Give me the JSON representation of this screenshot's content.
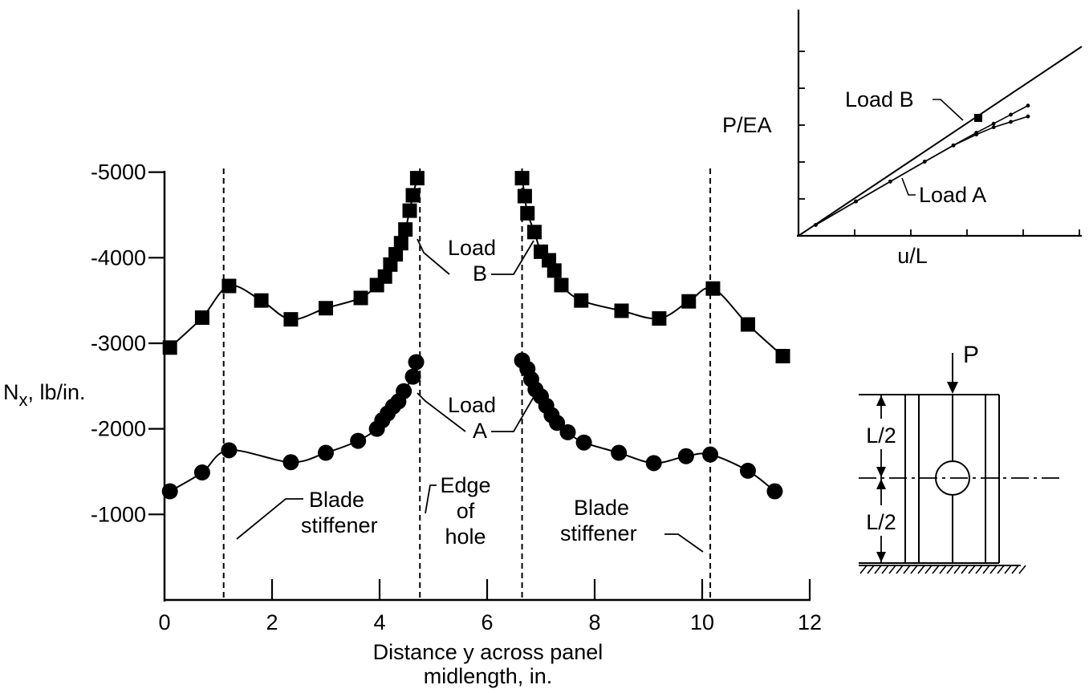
{
  "chart_data": [
    {
      "type": "scatter",
      "xlabel": "Distance y across panel midlength, in.",
      "xlabel_lines": [
        "Distance y across panel",
        "midlength, in."
      ],
      "ylabel_main": "N",
      "ylabel_sub": "x",
      "ylabel_rest": ", lb/in.",
      "x_ticks": [
        "0",
        "2",
        "4",
        "6",
        "8",
        "10",
        "12"
      ],
      "x_tick_values": [
        0,
        2,
        4,
        6,
        8,
        10,
        12
      ],
      "y_ticks": [
        "-1000",
        "-2000",
        "-3000",
        "-4000",
        "-5000"
      ],
      "y_tick_values": [
        -1000,
        -2000,
        -3000,
        -4000,
        -5000
      ],
      "xlim": [
        0,
        12
      ],
      "ylim": [
        0,
        -5000
      ],
      "grid": false,
      "series": [
        {
          "name": "Load B",
          "label_lines": [
            "Load",
            "B"
          ],
          "marker": "square",
          "segments": [
            [
              [
                0.1,
                -2950
              ],
              [
                0.7,
                -3300
              ],
              [
                1.2,
                -3670
              ],
              [
                1.8,
                -3500
              ],
              [
                2.35,
                -3280
              ],
              [
                3.0,
                -3410
              ],
              [
                3.65,
                -3530
              ],
              [
                3.95,
                -3680
              ],
              [
                4.1,
                -3780
              ],
              [
                4.2,
                -3920
              ],
              [
                4.3,
                -4040
              ],
              [
                4.4,
                -4170
              ],
              [
                4.48,
                -4330
              ],
              [
                4.56,
                -4550
              ],
              [
                4.62,
                -4730
              ],
              [
                4.7,
                -4930
              ]
            ],
            [
              [
                6.65,
                -4930
              ],
              [
                6.7,
                -4720
              ],
              [
                6.75,
                -4520
              ],
              [
                6.88,
                -4300
              ],
              [
                7.0,
                -4070
              ],
              [
                7.15,
                -3970
              ],
              [
                7.25,
                -3850
              ],
              [
                7.38,
                -3680
              ],
              [
                7.75,
                -3500
              ],
              [
                8.5,
                -3380
              ],
              [
                9.2,
                -3290
              ],
              [
                9.75,
                -3490
              ],
              [
                10.2,
                -3640
              ],
              [
                10.85,
                -3220
              ],
              [
                11.5,
                -2850
              ]
            ]
          ]
        },
        {
          "name": "Load A",
          "label_lines": [
            "Load",
            "A"
          ],
          "marker": "circle",
          "segments": [
            [
              [
                0.1,
                -1270
              ],
              [
                0.7,
                -1490
              ],
              [
                1.2,
                -1750
              ],
              [
                2.35,
                -1610
              ],
              [
                3.0,
                -1720
              ],
              [
                3.6,
                -1860
              ],
              [
                3.95,
                -2000
              ],
              [
                4.05,
                -2100
              ],
              [
                4.15,
                -2180
              ],
              [
                4.25,
                -2260
              ],
              [
                4.35,
                -2320
              ],
              [
                4.45,
                -2440
              ],
              [
                4.62,
                -2610
              ],
              [
                4.68,
                -2780
              ]
            ],
            [
              [
                6.65,
                -2800
              ],
              [
                6.75,
                -2700
              ],
              [
                6.82,
                -2580
              ],
              [
                6.9,
                -2460
              ],
              [
                7.0,
                -2380
              ],
              [
                7.1,
                -2270
              ],
              [
                7.2,
                -2160
              ],
              [
                7.3,
                -2070
              ],
              [
                7.5,
                -1960
              ],
              [
                7.8,
                -1840
              ],
              [
                8.45,
                -1720
              ],
              [
                9.1,
                -1600
              ],
              [
                9.7,
                -1680
              ],
              [
                10.15,
                -1700
              ],
              [
                10.85,
                -1510
              ],
              [
                11.35,
                -1270
              ]
            ]
          ]
        }
      ],
      "reference_lines": [
        {
          "name": "Blade stiffener (left)",
          "x": 1.1
        },
        {
          "name": "Edge of hole (left)",
          "x": 4.75
        },
        {
          "name": "Edge of hole (right)",
          "x": 6.65
        },
        {
          "name": "Blade stiffener (right)",
          "x": 10.15
        }
      ],
      "annotations": {
        "blade_left": [
          "Blade",
          "stiffener"
        ],
        "edge_hole": [
          "Edge",
          "of",
          "hole"
        ],
        "blade_right": [
          "Blade",
          "stiffener"
        ]
      }
    },
    {
      "type": "line",
      "xlabel": "u/L",
      "ylabel": "P/EA",
      "axis_ticks_unlabeled": true,
      "series": [
        {
          "name": "Linear",
          "x": [
            0,
            5
          ],
          "y": [
            0,
            5
          ]
        },
        {
          "name": "Load B",
          "x": [
            0.3,
            1.0,
            1.6,
            2.2,
            2.7,
            3.1,
            3.4,
            3.7,
            4.0
          ],
          "y": [
            0.3,
            0.95,
            1.5,
            2.05,
            2.5,
            2.85,
            3.1,
            3.35,
            3.6
          ]
        },
        {
          "name": "Load A",
          "x": [
            0.3,
            1.0,
            1.6,
            2.2,
            2.7,
            3.1,
            3.4,
            3.7,
            4.0
          ],
          "y": [
            0.3,
            0.95,
            1.5,
            2.05,
            2.5,
            2.8,
            3.0,
            3.15,
            3.3
          ]
        }
      ],
      "labels": {
        "load_b": "Load B",
        "load_a": "Load A"
      }
    }
  ],
  "schematic": {
    "load_label": "P",
    "upper_dim": "L/2",
    "lower_dim": "L/2"
  }
}
